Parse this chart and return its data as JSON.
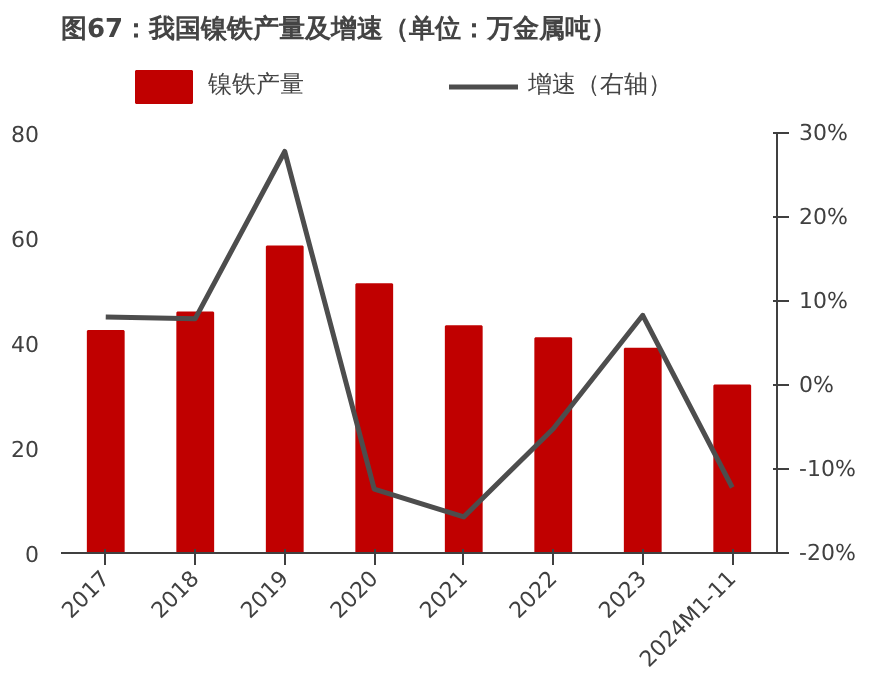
{
  "chart_data": {
    "type": "bar",
    "title": "图67：我国镍铁产量及增速（单位：万金属吨）",
    "categories": [
      "2017",
      "2018",
      "2019",
      "2020",
      "2021",
      "2022",
      "2023",
      "2024M1-11"
    ],
    "series": [
      {
        "name": "镍铁产量",
        "color": "#c00000",
        "values": [
          42.3,
          45.8,
          58.4,
          51.2,
          43.2,
          40.9,
          38.9,
          31.9
        ]
      },
      {
        "name": "增速（右轴）",
        "type": "line",
        "axis": "y2",
        "color": "#4d4d4d",
        "values": [
          8.1,
          7.9,
          27.8,
          -12.4,
          -15.7,
          -5.2,
          8.3,
          -12.2
        ]
      }
    ],
    "ylim": [
      0,
      80
    ],
    "yticks": [
      0,
      20,
      40,
      60,
      80
    ],
    "y2lim": [
      -20,
      30
    ],
    "y2ticks": [
      {
        "value": -20,
        "label": "-20%"
      },
      {
        "value": -10,
        "label": "-10%"
      },
      {
        "value": 0,
        "label": "0%"
      },
      {
        "value": 10,
        "label": "10%"
      },
      {
        "value": 20,
        "label": "20%"
      },
      {
        "value": 30,
        "label": "30%"
      }
    ],
    "legend": "top",
    "grid": false,
    "marker": "none",
    "line_style": "solid"
  }
}
